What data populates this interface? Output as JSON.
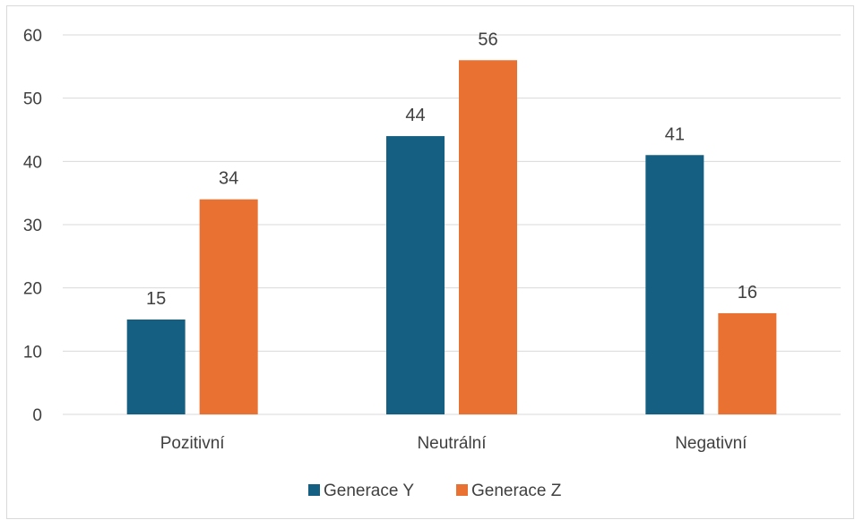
{
  "chart_data": {
    "type": "bar",
    "categories": [
      "Pozitivní",
      "Neutrální",
      "Negativní"
    ],
    "series": [
      {
        "name": "Generace Y",
        "values": [
          15,
          44,
          41
        ],
        "color": "#156082"
      },
      {
        "name": "Generace Z",
        "values": [
          34,
          56,
          16
        ],
        "color": "#E97132"
      }
    ],
    "yticks": [
      "0",
      "10",
      "20",
      "30",
      "40",
      "50",
      "60"
    ],
    "ylim": [
      0,
      60
    ],
    "grid": true,
    "legend_position": "bottom",
    "data_labels": true,
    "gridline_color": "#d9d9d9"
  }
}
